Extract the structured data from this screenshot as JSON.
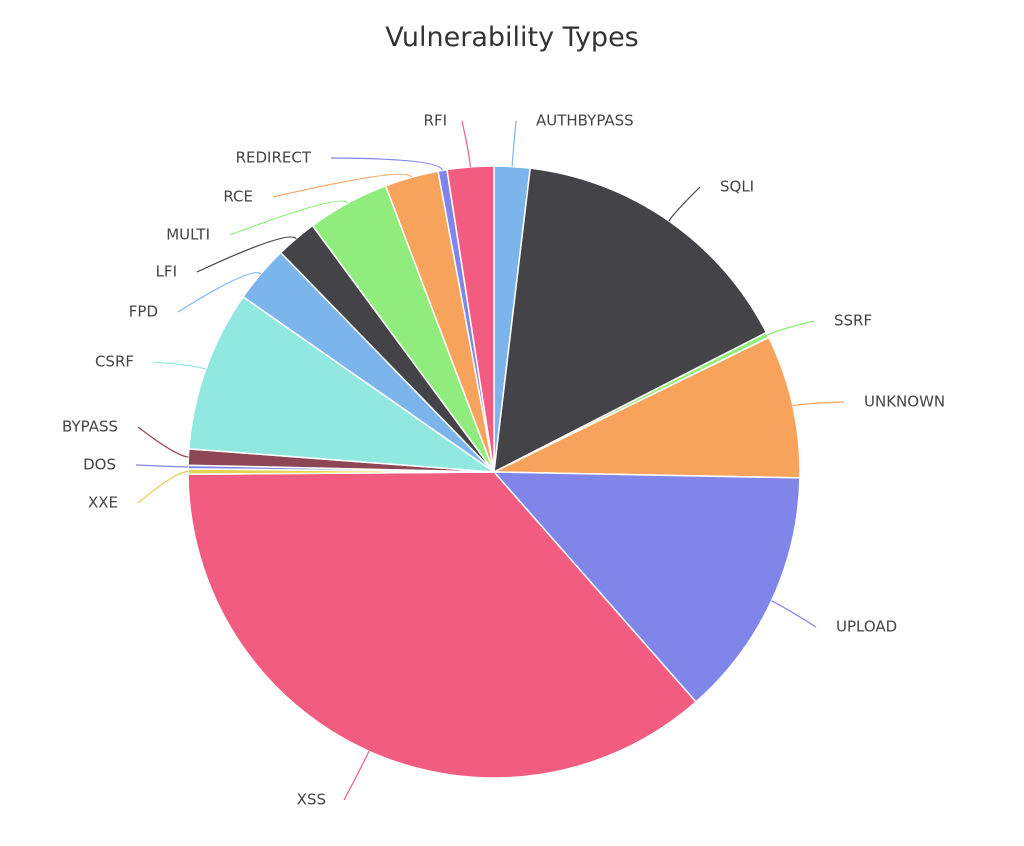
{
  "chart_data": {
    "type": "pie",
    "title": "Vulnerability Types",
    "slices": [
      {
        "label": "AUTHBYPASS",
        "value": 2.0,
        "color": "#7cb5ec"
      },
      {
        "label": "SQLI",
        "value": 16.5,
        "color": "#434348"
      },
      {
        "label": "SSRF",
        "value": 0.3,
        "color": "#90ed7d"
      },
      {
        "label": "UNKNOWN",
        "value": 8.0,
        "color": "#f7a35c"
      },
      {
        "label": "UPLOAD",
        "value": 14.0,
        "color": "#8085e9"
      },
      {
        "label": "XSS",
        "value": 38.5,
        "color": "#f15c80"
      },
      {
        "label": "XXE",
        "value": 0.3,
        "color": "#e4d354"
      },
      {
        "label": "DOS",
        "value": 0.2,
        "color": "#8085e8"
      },
      {
        "label": "BYPASS",
        "value": 0.9,
        "color": "#8d4653"
      },
      {
        "label": "CSRF",
        "value": 9.0,
        "color": "#91e8e1"
      },
      {
        "label": "FPD",
        "value": 3.2,
        "color": "#7cb5ec"
      },
      {
        "label": "LFI",
        "value": 2.3,
        "color": "#434348"
      },
      {
        "label": "MULTI",
        "value": 4.6,
        "color": "#90ed7d"
      },
      {
        "label": "RCE",
        "value": 3.0,
        "color": "#f7a35c"
      },
      {
        "label": "REDIRECT",
        "value": 0.5,
        "color": "#8085e9"
      },
      {
        "label": "RFI",
        "value": 2.6,
        "color": "#f15c80"
      }
    ]
  }
}
